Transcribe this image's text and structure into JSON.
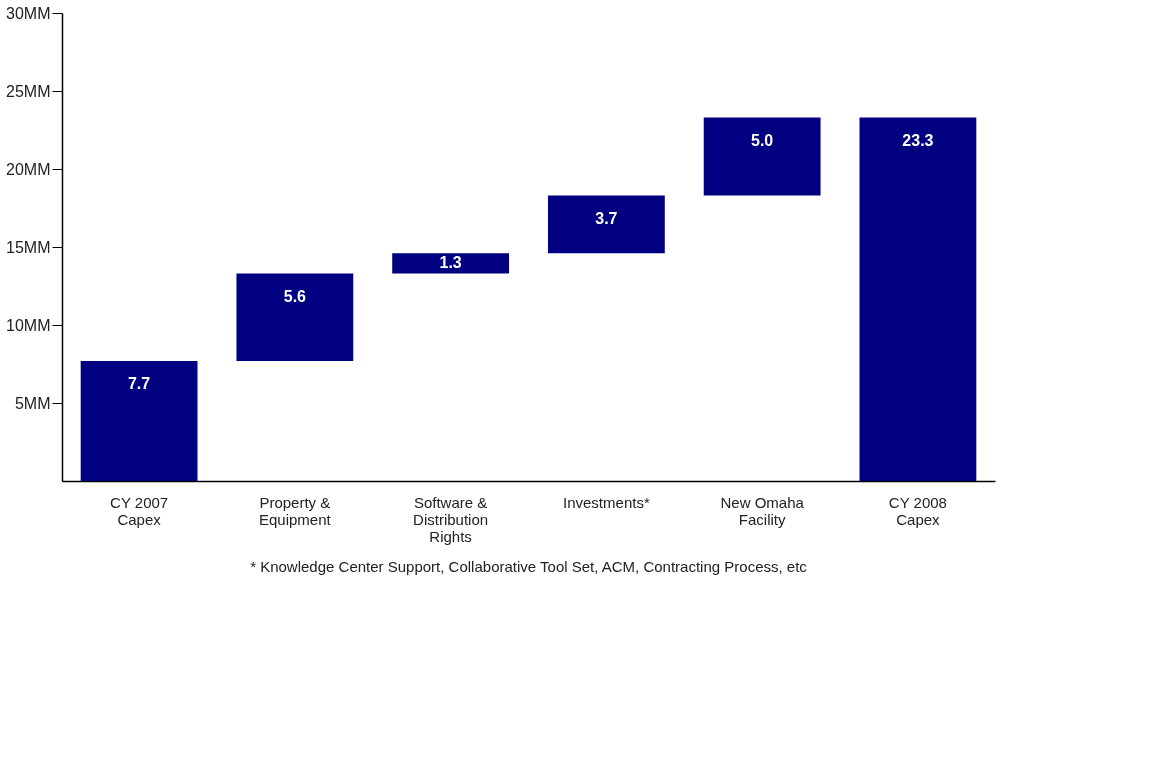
{
  "chart_data": {
    "type": "bar",
    "categories": [
      "CY 2007 Capex",
      "Property & Equipment",
      "Software & Distribution Rights",
      "Investments*",
      "New Omaha Facility",
      "CY 2008 Capex"
    ],
    "values": [
      7.7,
      5.6,
      1.3,
      3.7,
      5.0,
      23.3
    ],
    "base": [
      0,
      7.7,
      13.3,
      14.6,
      18.3,
      0
    ],
    "value_labels": [
      "7.7",
      "5.6",
      "1.3",
      "3.7",
      "5.0",
      "23.3"
    ],
    "color": "#000080",
    "ylim": [
      0,
      30
    ],
    "yticks": [
      {
        "value": 5,
        "label": "5MM"
      },
      {
        "value": 10,
        "label": "10MM"
      },
      {
        "value": 15,
        "label": "15MM"
      },
      {
        "value": 20,
        "label": "20MM"
      },
      {
        "value": 25,
        "label": "25MM"
      },
      {
        "value": 30,
        "label": "30MM"
      }
    ],
    "grid": false,
    "annotations": [
      "* Knowledge Center Support, Collaborative Tool Set, ACM, Contracting Process, etc"
    ]
  }
}
